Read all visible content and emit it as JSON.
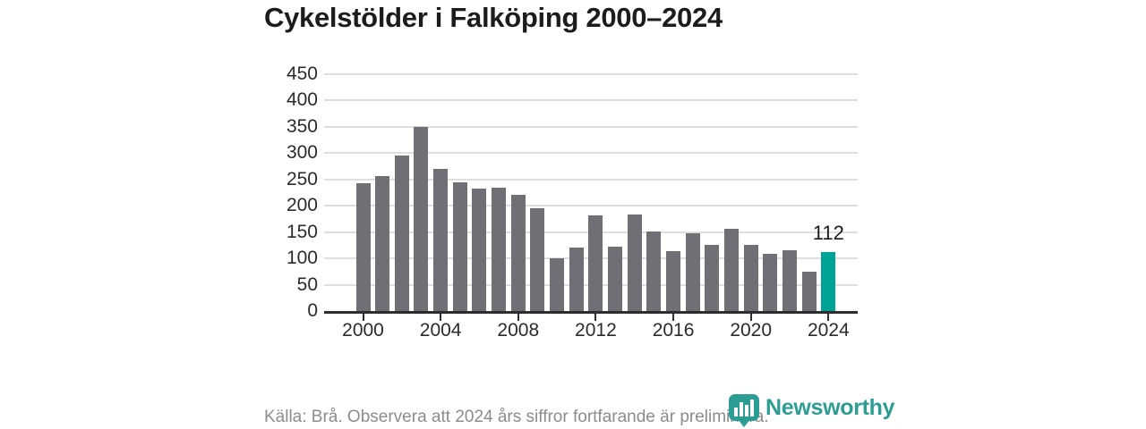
{
  "title": "Cykelstölder i Falköping 2000–2024",
  "footer": "Källa: Brå. Observera att 2024 års siffror fortfarande är preliminära.",
  "brand": {
    "name": "Newsworthy"
  },
  "colors": {
    "bar": "#716f76",
    "highlight": "#00a296",
    "brand": "#2b9d92",
    "grid": "#dedede",
    "axis": "#2e2e2e",
    "title_text": "#1c1c1c",
    "tick_text": "#2b2b2b",
    "footer_text": "#8c8c8c"
  },
  "chart_data": {
    "type": "bar",
    "title": "Cykelstölder i Falköping 2000–2024",
    "x": [
      2000,
      2001,
      2002,
      2003,
      2004,
      2005,
      2006,
      2007,
      2008,
      2009,
      2010,
      2011,
      2012,
      2013,
      2014,
      2015,
      2016,
      2017,
      2018,
      2019,
      2020,
      2021,
      2022,
      2023,
      2024
    ],
    "values": [
      243,
      256,
      296,
      350,
      270,
      245,
      232,
      234,
      221,
      195,
      101,
      121,
      182,
      122,
      183,
      151,
      114,
      147,
      125,
      157,
      126,
      109,
      115,
      74,
      112
    ],
    "highlight_index": 24,
    "annotation": {
      "text": "112",
      "year": 2024
    },
    "x_tick_labels": [
      "2000",
      "2004",
      "2008",
      "2012",
      "2016",
      "2020",
      "2024"
    ],
    "y_ticks": [
      0,
      50,
      100,
      150,
      200,
      250,
      300,
      350,
      400,
      450
    ],
    "ylim": [
      0,
      450
    ],
    "grid": "horizontal",
    "legend": "none",
    "xlabel": "",
    "ylabel": ""
  }
}
